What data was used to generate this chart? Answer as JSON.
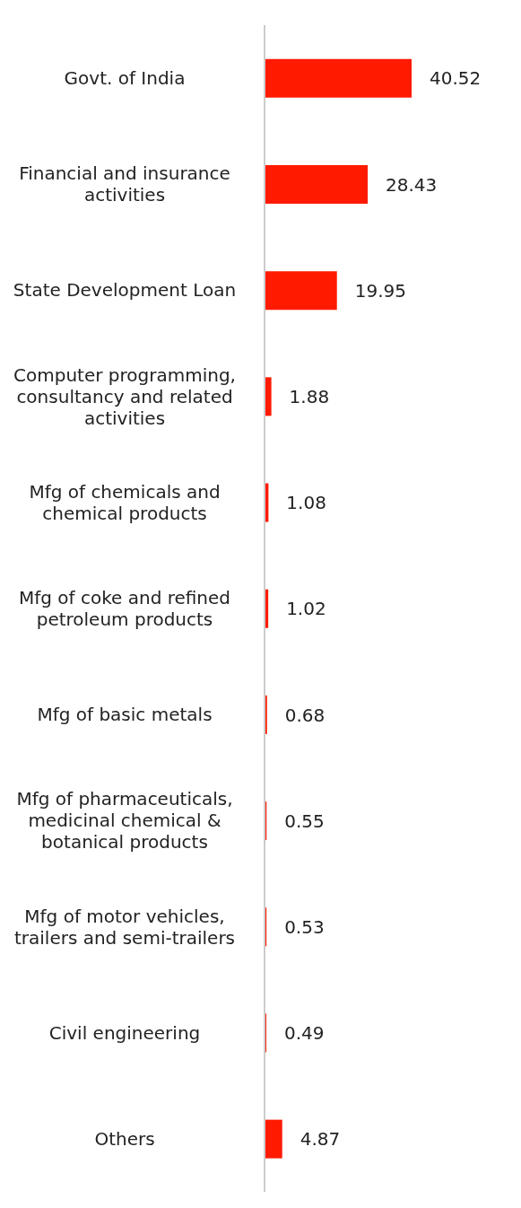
{
  "chart_data": {
    "type": "bar",
    "orientation": "horizontal",
    "categories": [
      "Govt. of India",
      "Financial and insurance activities",
      "State Development Loan",
      "Computer programming, consultancy and related activities",
      "Mfg of chemicals and chemical products",
      "Mfg of coke and refined petroleum products",
      "Mfg of basic metals",
      "Mfg of pharmaceuticals, medicinal chemical & botanical products",
      "Mfg of motor vehicles, trailers and semi-trailers",
      "Civil engineering",
      "Others"
    ],
    "values": [
      40.52,
      28.43,
      19.95,
      1.88,
      1.08,
      1.02,
      0.68,
      0.55,
      0.53,
      0.49,
      4.87
    ],
    "color": "#ff1a00",
    "data_labels": true
  }
}
